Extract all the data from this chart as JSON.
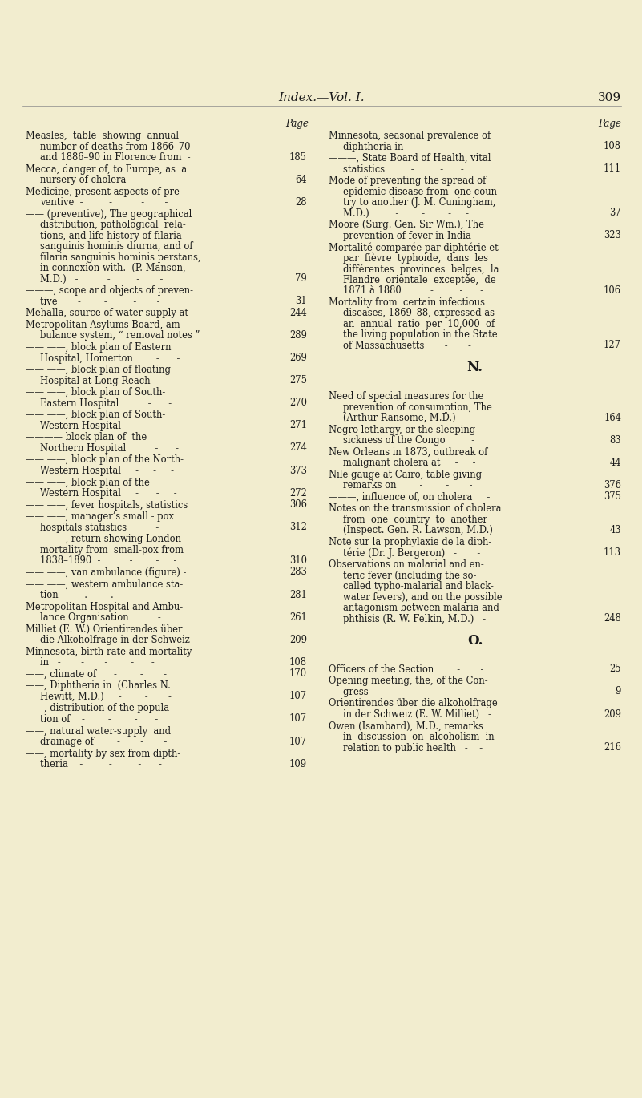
{
  "bg_color": "#f2edcf",
  "text_color": "#1a1a1a",
  "header_italic": "Index.—Vol. I.",
  "page_number": "309",
  "left_col": [
    {
      "lines": [
        "Measles,  table  showing  annual",
        "    number of deaths from 1866–70",
        "    and 1886–90 in Florence from  -"
      ],
      "page": "185"
    },
    {
      "lines": [
        "Mecca, danger of, to Europe, as  a",
        "    nursery of cholera          -      -"
      ],
      "page": "64"
    },
    {
      "lines": [
        "Medicine, present aspects of pre-",
        "    ventive  -         -          -       -"
      ],
      "page": "28"
    },
    {
      "lines": [
        "—— (preventive), The geographical",
        "    distribution, pathological  rela-",
        "    tions, and life history of filaria",
        "    sanguinis hominis diurna, and of",
        "    filaria sanguinis hominis perstans,",
        "    in connexion with.  (P. Manson,",
        "    M.D.)   -          -         -       -"
      ],
      "page": "79"
    },
    {
      "lines": [
        "———, scope and objects of preven-",
        "    tive       -        -         -       -"
      ],
      "page": "31"
    },
    {
      "lines": [
        "Mehalla, source of water supply at"
      ],
      "page": "244"
    },
    {
      "lines": [
        "Metropolitan Asylums Board, am-",
        "    bulance system, “ removal notes ”"
      ],
      "page": "289"
    },
    {
      "lines": [
        "—— ——, block plan of Eastern",
        "    Hospital, Homerton        -      -"
      ],
      "page": "269"
    },
    {
      "lines": [
        "—— ——, block plan of floating",
        "    Hospital at Long Reach   -      -"
      ],
      "page": "275"
    },
    {
      "lines": [
        "—— ——, block plan of South-",
        "    Eastern Hospital          -      -"
      ],
      "page": "270"
    },
    {
      "lines": [
        "—— ——, block plan of South-",
        "    Western Hospital   -       -      -"
      ],
      "page": "271"
    },
    {
      "lines": [
        "———— block plan of  the",
        "    Northern Hospital          -      -"
      ],
      "page": "274"
    },
    {
      "lines": [
        "—— ——, block plan of the North-",
        "    Western Hospital     -     -     -"
      ],
      "page": "373"
    },
    {
      "lines": [
        "—— ——, block plan of the",
        "    Western Hospital     -      -     -"
      ],
      "page": "272"
    },
    {
      "lines": [
        "—— ——, fever hospitals, statistics"
      ],
      "page": "306"
    },
    {
      "lines": [
        "—— ——, manager’s small - pox",
        "    hospitals statistics          -"
      ],
      "page": "312"
    },
    {
      "lines": [
        "—— ——, return showing London",
        "    mortality from  small-pox from",
        "    1838–1890  -          -        -     -"
      ],
      "page": "310"
    },
    {
      "lines": [
        "—— ——, van ambulance (figure) -"
      ],
      "page": "283"
    },
    {
      "lines": [
        "—— ——, western ambulance sta-",
        "    tion         .        .    -       -"
      ],
      "page": "281"
    },
    {
      "lines": [
        "Metropolitan Hospital and Ambu-",
        "    lance Organisation          -"
      ],
      "page": "261"
    },
    {
      "lines": [
        "Milliet (E. W.) Orientirendes über",
        "    die Alkoholfrage in der Schweiz -"
      ],
      "page": "209"
    },
    {
      "lines": [
        "Minnesota, birth-rate and mortality",
        "    in   -       -       -        -      -"
      ],
      "page": "108"
    },
    {
      "lines": [
        "——, climate of      -        -       -"
      ],
      "page": "170"
    },
    {
      "lines": [
        "——, Diphtheria in  (Charles N.",
        "    Hewitt, M.D.)     -        -       -"
      ],
      "page": "107"
    },
    {
      "lines": [
        "——, distribution of the popula-",
        "    tion of    -        -        -      -"
      ],
      "page": "107"
    },
    {
      "lines": [
        "——, natural water-supply  and",
        "    drainage of        -       -       -"
      ],
      "page": "107"
    },
    {
      "lines": [
        "——, mortality by sex from dipth-",
        "    theria    -         -         -      -"
      ],
      "page": "109"
    }
  ],
  "right_col": [
    {
      "lines": [
        "Minnesota, seasonal prevalence of",
        "    diphtheria in       -        -      -"
      ],
      "page": "108"
    },
    {
      "lines": [
        "———, State Board of Health, vital",
        "    statistics         -         -      -"
      ],
      "page": "111"
    },
    {
      "lines": [
        "Mode of preventing the spread of",
        "    epidemic disease from  one coun-",
        "    try to another (J. M. Cuningham,",
        "    M.D.)         -        -        -     -"
      ],
      "page": "37"
    },
    {
      "lines": [
        "Moore (Surg. Gen. Sir Wm.), The",
        "    prevention of fever in India     -"
      ],
      "page": "323"
    },
    {
      "lines": [
        "Mortalité comparée par diphtérie et",
        "    par  fièvre  typhoide,  dans  les",
        "    différentes  provinces  belges,  la",
        "    Flandre  orientale  exceptée,  de",
        "    1871 à 1880          -         -      -"
      ],
      "page": "106"
    },
    {
      "lines": [
        "Mortality from  certain infectious",
        "    diseases, 1869–88, expressed as",
        "    an  annual  ratio  per  10,000  of",
        "    the living population in the State",
        "    of Massachusetts       -       -"
      ],
      "page": "127"
    },
    {
      "section": "N."
    },
    {
      "lines": [
        "Need of special measures for the",
        "    prevention of consumption, The",
        "    (Arthur Ransome, M.D.)        -"
      ],
      "page": "164"
    },
    {
      "lines": [
        "Negro lethargy, or the sleeping",
        "    sickness of the Congo         -"
      ],
      "page": "83"
    },
    {
      "lines": [
        "New Orleans in 1873, outbreak of",
        "    malignant cholera at     -     -"
      ],
      "page": "44"
    },
    {
      "lines": [
        "Nile gauge at Cairo, table giving",
        "    remarks on        -        -       -"
      ],
      "page": "376"
    },
    {
      "lines": [
        "———, influence of, on cholera     -"
      ],
      "page": "375"
    },
    {
      "lines": [
        "Notes on the transmission of cholera",
        "    from  one  country  to  another",
        "    (Inspect. Gen. R. Lawson, M.D.)"
      ],
      "page": "43"
    },
    {
      "lines": [
        "Note sur la prophylaxie de la diph-",
        "    térie (Dr. J. Bergeron)   -       -"
      ],
      "page": "113"
    },
    {
      "lines": [
        "Observations on malarial and en-",
        "    teric fever (including the so-",
        "    called typho-malarial and black-",
        "    water fevers), and on the possible",
        "    antagonism between malaria and",
        "    phthisis (R. W. Felkin, M.D.)   -"
      ],
      "page": "248"
    },
    {
      "section": "O."
    },
    {
      "lines": [
        "Officers of the Section        -       -"
      ],
      "page": "25"
    },
    {
      "lines": [
        "Opening meeting, the, of the Con-",
        "    gress         -         -        -       -"
      ],
      "page": "9"
    },
    {
      "lines": [
        "Orientirendes über die alkoholfrage",
        "    in der Schweiz (E. W. Milliet)   -"
      ],
      "page": "209"
    },
    {
      "lines": [
        "Owen (Isambard), M.D., remarks",
        "    in  discussion  on  alcoholism  in",
        "    relation to public health   -    -"
      ],
      "page": "216"
    }
  ]
}
